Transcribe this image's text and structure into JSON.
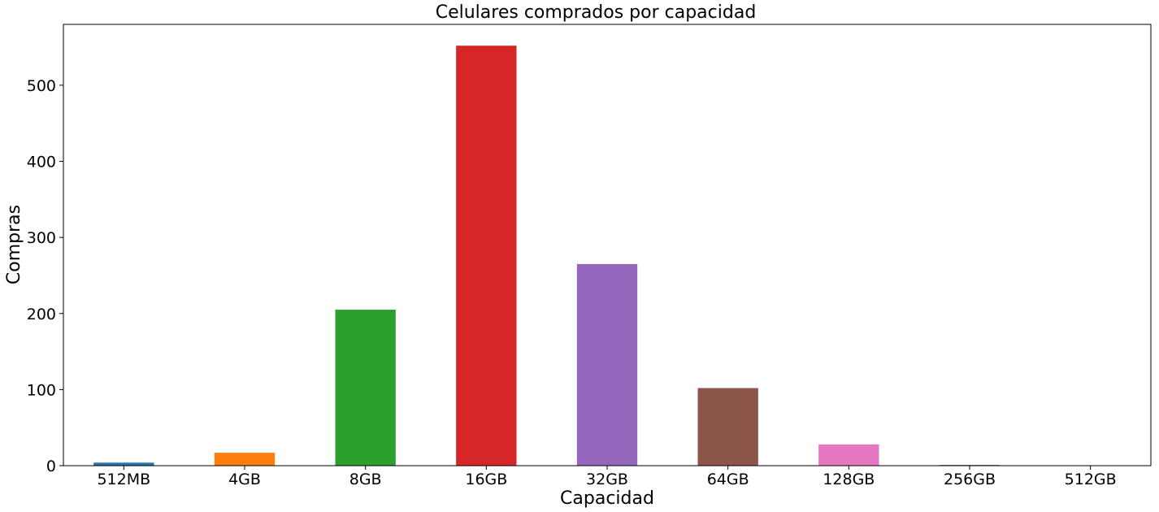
{
  "chart_data": {
    "type": "bar",
    "title": "Celulares comprados por capacidad",
    "xlabel": "Capacidad",
    "ylabel": "Compras",
    "categories": [
      "512MB",
      "4GB",
      "8GB",
      "16GB",
      "32GB",
      "64GB",
      "128GB",
      "256GB",
      "512GB"
    ],
    "values": [
      4,
      17,
      205,
      552,
      265,
      102,
      28,
      1,
      0
    ],
    "colors": [
      "#1f77b4",
      "#ff7f0e",
      "#2ca02c",
      "#d62728",
      "#9467bd",
      "#8c564b",
      "#e377c2",
      "#7f7f7f",
      "#bcbd22"
    ],
    "ylim": [
      0,
      580
    ],
    "yticks": [
      0,
      100,
      200,
      300,
      400,
      500
    ],
    "grid": false,
    "legend": "none"
  }
}
